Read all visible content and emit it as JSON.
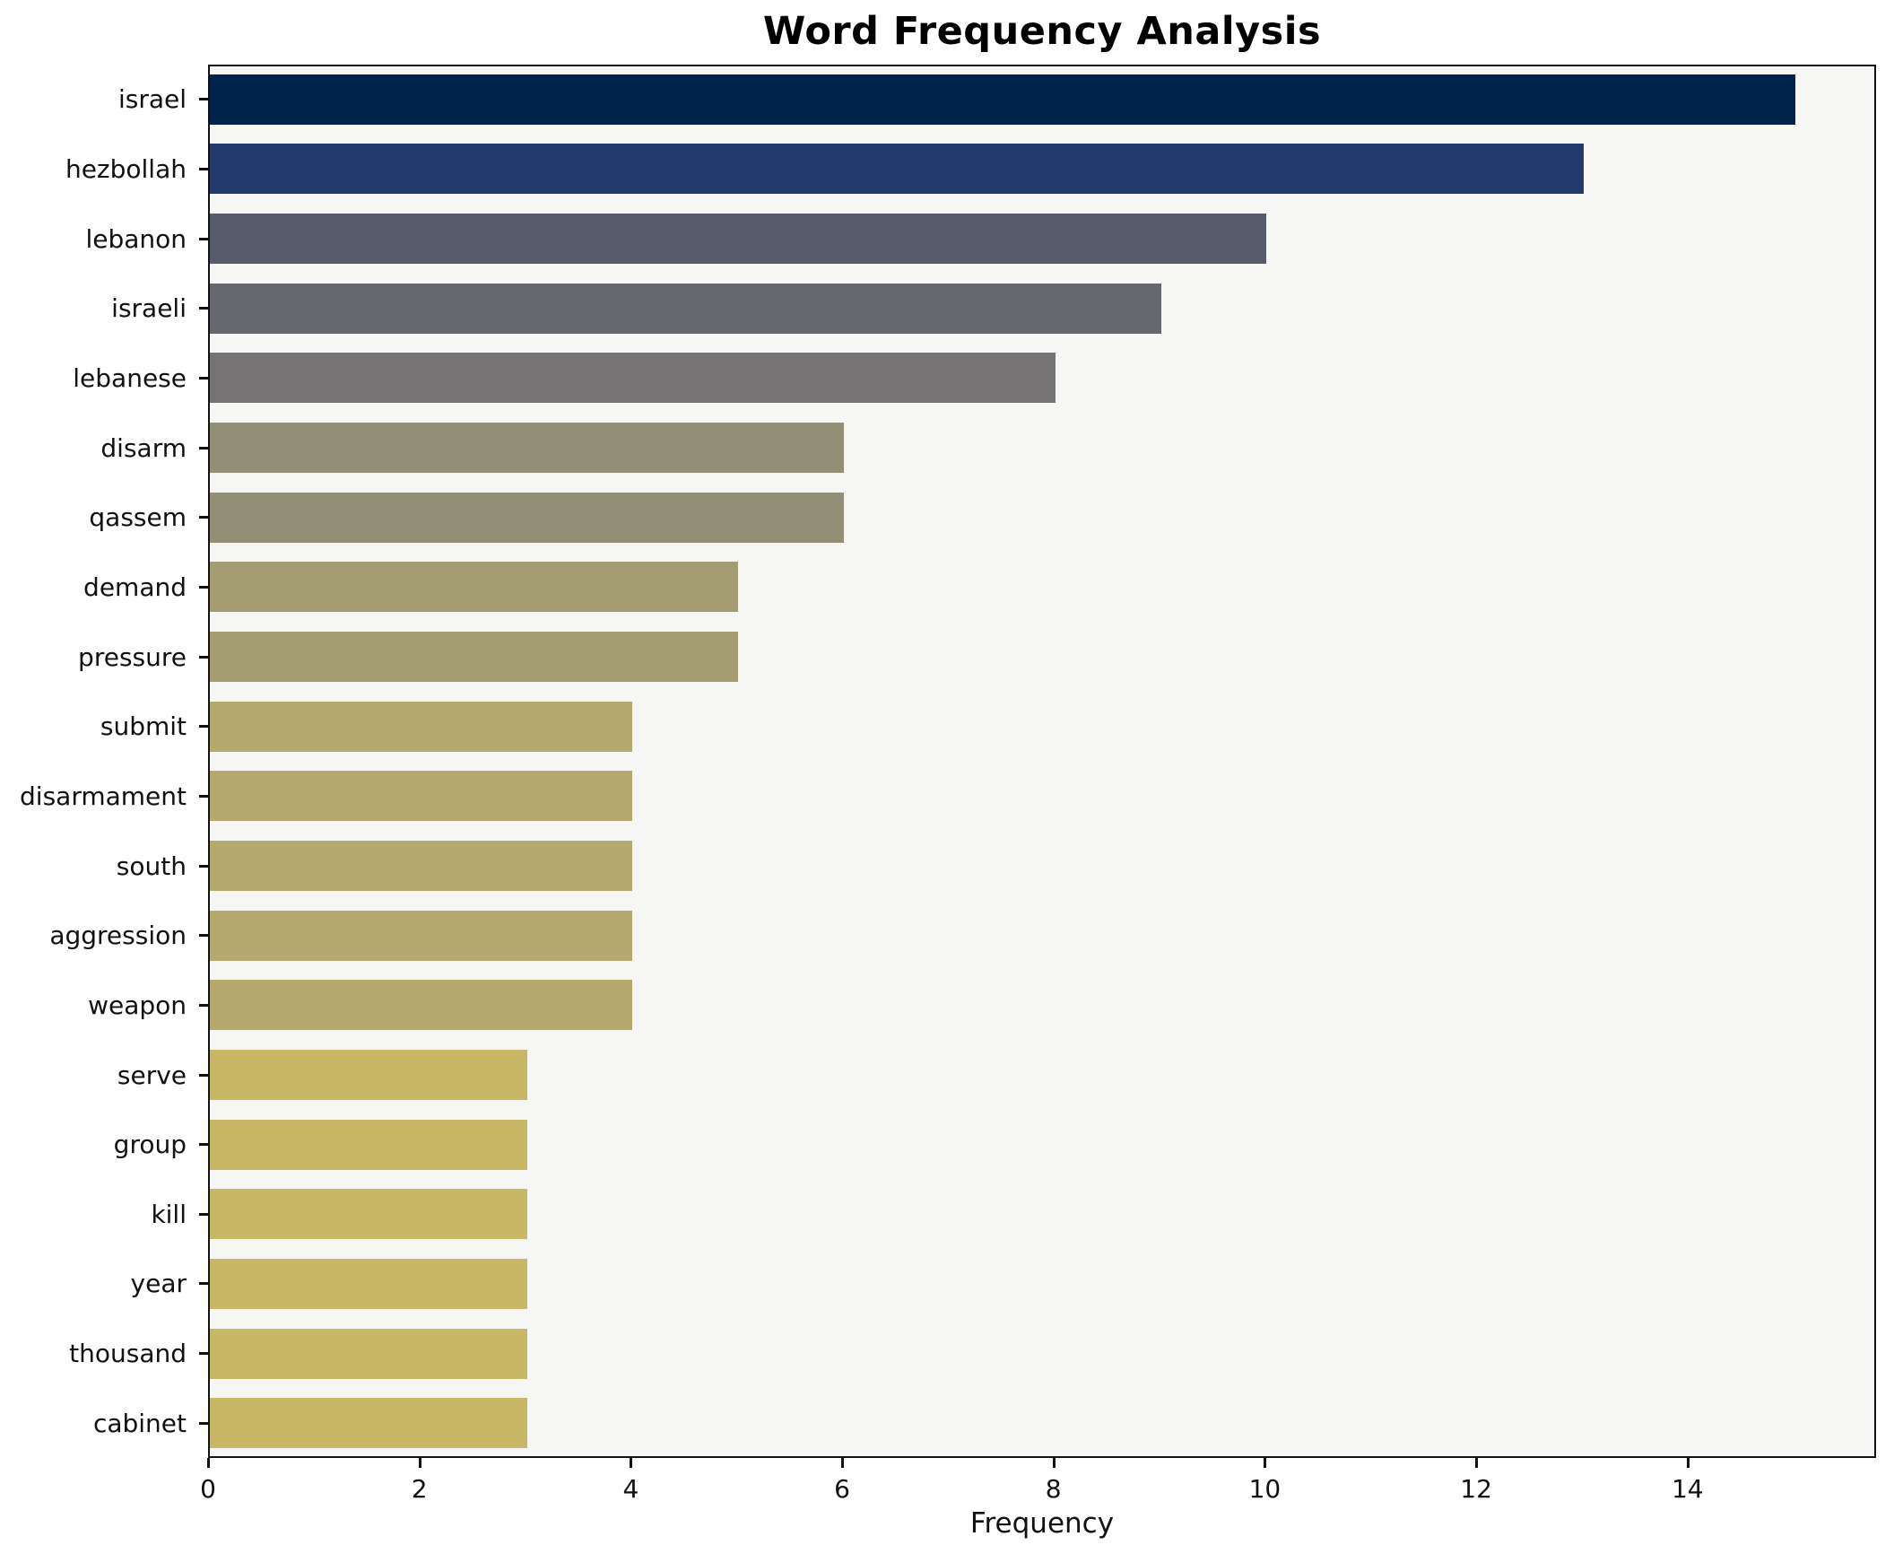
{
  "title": "Word Frequency Analysis",
  "xlabel": "Frequency",
  "chart_data": {
    "type": "bar",
    "orientation": "horizontal",
    "title": "Word Frequency Analysis",
    "xlabel": "Frequency",
    "ylabel": "",
    "categories": [
      "israel",
      "hezbollah",
      "lebanon",
      "israeli",
      "lebanese",
      "disarm",
      "qassem",
      "demand",
      "pressure",
      "submit",
      "disarmament",
      "south",
      "aggression",
      "weapon",
      "serve",
      "group",
      "kill",
      "year",
      "thousand",
      "cabinet"
    ],
    "values": [
      15,
      13,
      10,
      9,
      8,
      6,
      6,
      5,
      5,
      4,
      4,
      4,
      4,
      4,
      3,
      3,
      3,
      3,
      3,
      3
    ],
    "bar_colors": [
      "#00234d",
      "#233a6c",
      "#575c6b",
      "#66676f",
      "#757374",
      "#938f77",
      "#938f77",
      "#a49c72",
      "#a49c72",
      "#b5a96d",
      "#b5a96d",
      "#b5a96d",
      "#b5a96d",
      "#b5a96d",
      "#c8b766",
      "#c8b766",
      "#c8b766",
      "#c8b766",
      "#c8b766",
      "#c8b766"
    ],
    "xlim": [
      0,
      15.75
    ],
    "x_ticks": [
      0,
      2,
      4,
      6,
      8,
      10,
      12,
      14
    ],
    "grid": false,
    "legend": null,
    "colormap": "cividis",
    "plot_bg": "#f6f6f5",
    "page_bg": "#ffffff",
    "spine_color": "#111111"
  }
}
